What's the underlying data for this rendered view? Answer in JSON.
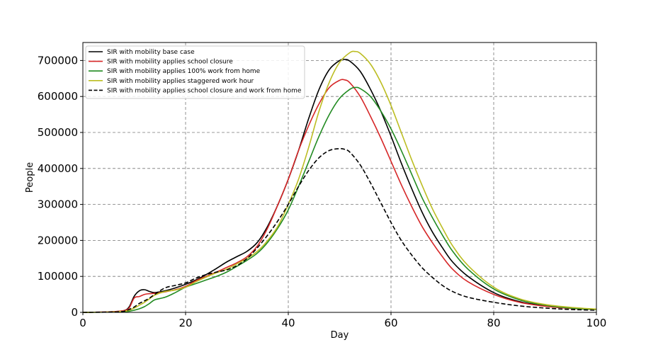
{
  "chart_data": {
    "type": "line",
    "xlabel": "Day",
    "ylabel": "People",
    "xlim": [
      0,
      100
    ],
    "ylim": [
      0,
      750000
    ],
    "xticks": [
      0,
      20,
      40,
      60,
      80,
      100
    ],
    "yticks": [
      0,
      100000,
      200000,
      300000,
      400000,
      500000,
      600000,
      700000
    ],
    "grid": true,
    "legend_position": "top-left",
    "series": [
      {
        "name": "SIR with mobility base case",
        "color": "#000000",
        "dash": "solid",
        "x": [
          0,
          4,
          6,
          8,
          9,
          10,
          11,
          12,
          13,
          14,
          16,
          18,
          20,
          22,
          24,
          26,
          28,
          30,
          32,
          34,
          36,
          38,
          40,
          42,
          44,
          46,
          48,
          50,
          51,
          52,
          54,
          56,
          58,
          60,
          62,
          64,
          66,
          68,
          70,
          72,
          75,
          80,
          85,
          90,
          95,
          100
        ],
        "y": [
          0,
          1000,
          2000,
          5000,
          15000,
          45000,
          60000,
          63000,
          58000,
          55000,
          60000,
          68000,
          78000,
          90000,
          105000,
          122000,
          140000,
          155000,
          170000,
          195000,
          240000,
          300000,
          370000,
          450000,
          540000,
          620000,
          675000,
          700000,
          703000,
          698000,
          670000,
          620000,
          560000,
          490000,
          415000,
          345000,
          280000,
          225000,
          180000,
          140000,
          100000,
          55000,
          30000,
          18000,
          12000,
          9000
        ]
      },
      {
        "name": "SIR with mobility applies school closure",
        "color": "#d62728",
        "dash": "solid",
        "x": [
          0,
          4,
          6,
          8,
          9,
          10,
          11,
          12,
          13,
          14,
          16,
          18,
          20,
          22,
          24,
          26,
          28,
          30,
          32,
          34,
          36,
          38,
          40,
          42,
          44,
          46,
          48,
          50,
          51,
          52,
          54,
          56,
          58,
          60,
          62,
          64,
          66,
          68,
          70,
          72,
          75,
          80,
          85,
          90,
          95,
          100
        ],
        "y": [
          0,
          1000,
          2000,
          5000,
          12000,
          40000,
          44000,
          50000,
          52000,
          53000,
          57000,
          63000,
          72000,
          88000,
          100000,
          112000,
          125000,
          138000,
          155000,
          185000,
          235000,
          300000,
          370000,
          450000,
          520000,
          580000,
          625000,
          645000,
          646000,
          638000,
          600000,
          545000,
          485000,
          420000,
          355000,
          295000,
          240000,
          195000,
          155000,
          120000,
          85000,
          50000,
          28000,
          17000,
          11000,
          8000
        ]
      },
      {
        "name": "SIR with mobility applies 100% work from home",
        "color": "#228b22",
        "dash": "solid",
        "x": [
          0,
          4,
          6,
          8,
          9,
          10,
          11,
          12,
          13,
          14,
          16,
          18,
          20,
          22,
          24,
          26,
          28,
          30,
          32,
          34,
          36,
          38,
          40,
          42,
          44,
          46,
          48,
          50,
          52,
          53,
          54,
          56,
          58,
          60,
          62,
          64,
          66,
          68,
          70,
          72,
          75,
          80,
          85,
          90,
          95,
          100
        ],
        "y": [
          0,
          500,
          1000,
          2000,
          3000,
          6000,
          10000,
          16000,
          25000,
          35000,
          42000,
          55000,
          70000,
          80000,
          90000,
          100000,
          112000,
          128000,
          145000,
          165000,
          195000,
          235000,
          285000,
          350000,
          420000,
          490000,
          550000,
          595000,
          620000,
          625000,
          622000,
          600000,
          560000,
          510000,
          450000,
          385000,
          320000,
          265000,
          215000,
          170000,
          120000,
          65000,
          35000,
          20000,
          12000,
          8000
        ]
      },
      {
        "name": "SIR with mobility applies staggered work hour",
        "color": "#bcbd22",
        "dash": "solid",
        "x": [
          0,
          4,
          6,
          8,
          9,
          10,
          11,
          12,
          13,
          14,
          16,
          18,
          20,
          22,
          24,
          26,
          28,
          30,
          32,
          34,
          36,
          38,
          40,
          42,
          44,
          46,
          48,
          50,
          52,
          53,
          54,
          56,
          58,
          60,
          62,
          64,
          66,
          68,
          70,
          72,
          75,
          80,
          85,
          90,
          95,
          100
        ],
        "y": [
          0,
          500,
          1000,
          3000,
          6000,
          12000,
          20000,
          28000,
          38000,
          48000,
          58000,
          62000,
          70000,
          85000,
          98000,
          110000,
          120000,
          135000,
          150000,
          170000,
          200000,
          240000,
          300000,
          370000,
          460000,
          560000,
          640000,
          695000,
          722000,
          725000,
          720000,
          690000,
          640000,
          575000,
          500000,
          425000,
          355000,
          290000,
          235000,
          185000,
          130000,
          70000,
          38000,
          22000,
          14000,
          9000
        ]
      },
      {
        "name": "SIR with mobility applies school closure and work from home",
        "color": "#000000",
        "dash": "dashed",
        "x": [
          0,
          4,
          6,
          8,
          9,
          10,
          11,
          12,
          13,
          14,
          16,
          18,
          20,
          22,
          24,
          26,
          28,
          30,
          32,
          34,
          36,
          38,
          40,
          42,
          44,
          46,
          48,
          50,
          51,
          52,
          54,
          56,
          58,
          60,
          62,
          64,
          66,
          68,
          70,
          72,
          75,
          80,
          85,
          90,
          95,
          100
        ],
        "y": [
          0,
          500,
          1000,
          3000,
          8000,
          15000,
          25000,
          32000,
          40000,
          50000,
          68000,
          75000,
          82000,
          95000,
          105000,
          112000,
          118000,
          130000,
          150000,
          180000,
          215000,
          255000,
          300000,
          350000,
          395000,
          430000,
          450000,
          455000,
          453000,
          445000,
          410000,
          360000,
          305000,
          250000,
          200000,
          160000,
          125000,
          98000,
          75000,
          58000,
          42000,
          28000,
          18000,
          12000,
          8000,
          6000
        ]
      }
    ]
  }
}
